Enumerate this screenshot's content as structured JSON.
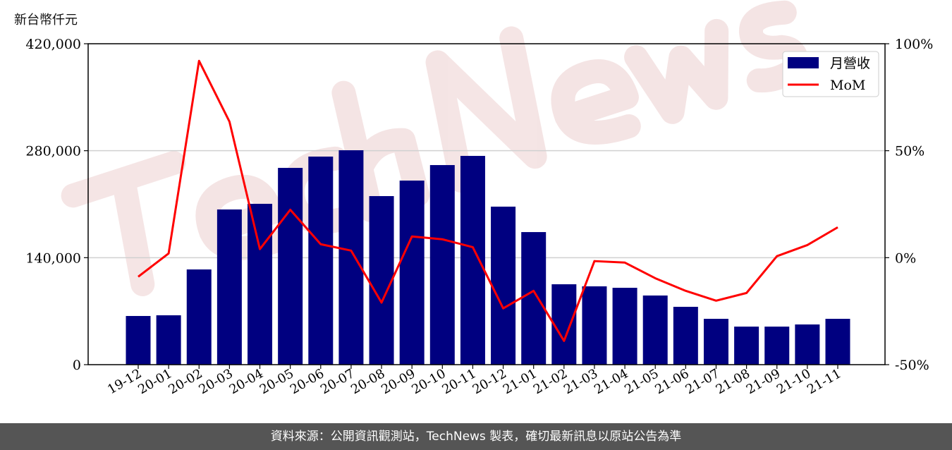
{
  "unit_label": "新台幣仟元",
  "footer": "資料來源：公開資訊觀測站，TechNews 製表，確切最新訊息以原站公告為準",
  "watermark": "TechNews",
  "chart_data": {
    "type": "bar+line",
    "categories": [
      "19-12",
      "20-01",
      "20-02",
      "20-03",
      "20-04",
      "20-05",
      "20-06",
      "20-07",
      "20-08",
      "20-09",
      "20-10",
      "20-11",
      "20-12",
      "21-01",
      "21-02",
      "21-03",
      "21-04",
      "21-05",
      "21-06",
      "21-07",
      "21-08",
      "21-09",
      "21-10",
      "21-11"
    ],
    "series": [
      {
        "name": "月營收",
        "type": "bar",
        "axis": "left",
        "color": "#000080",
        "values": [
          63700,
          64600,
          124600,
          203100,
          210500,
          257500,
          272300,
          280600,
          220600,
          240900,
          261200,
          273200,
          206800,
          173500,
          105200,
          102500,
          100600,
          90500,
          75700,
          60000,
          49800,
          49800,
          52600,
          60000
        ]
      },
      {
        "name": "MoM",
        "type": "line",
        "axis": "right",
        "color": "#ff0000",
        "values": [
          -8.9,
          2.0,
          92.0,
          63.6,
          4.0,
          22.4,
          6.3,
          3.3,
          -21.0,
          9.9,
          8.6,
          4.9,
          -23.7,
          -15.5,
          -38.9,
          -1.6,
          -2.3,
          -9.6,
          -15.5,
          -20.1,
          -16.5,
          0.7,
          5.9,
          14.2
        ]
      }
    ],
    "y_left": {
      "range": [
        0,
        420000
      ],
      "ticks": [
        "0",
        "140,000",
        "280,000",
        "420,000"
      ],
      "tick_values": [
        0,
        140000,
        280000,
        420000
      ]
    },
    "y_right": {
      "range": [
        -50,
        100
      ],
      "ticks": [
        "-50%",
        "0%",
        "50%",
        "100%"
      ],
      "tick_values": [
        -50,
        0,
        50,
        100
      ]
    },
    "grid": "horizontal",
    "legend": "top-right"
  }
}
